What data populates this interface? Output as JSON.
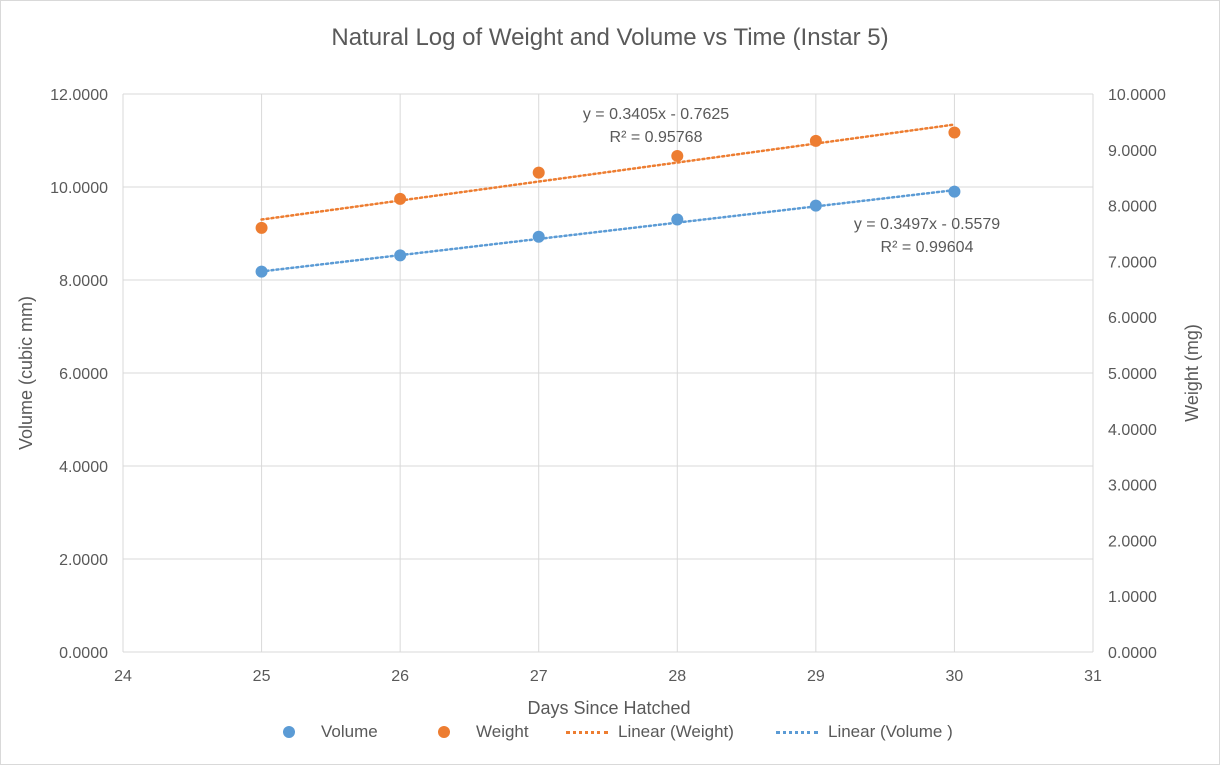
{
  "chart_data": {
    "type": "scatter",
    "title": "Natural Log of Weight and Volume vs Time (Instar 5)",
    "xlabel": "Days Since Hatched",
    "ylabel_left": "Volume (cubic mm)",
    "ylabel_right": "Weight (mg)",
    "xlim": [
      24,
      31
    ],
    "xticks": [
      "24",
      "25",
      "26",
      "27",
      "28",
      "29",
      "30",
      "31"
    ],
    "ylim_left": [
      0,
      12
    ],
    "yticks_left": [
      "0.0000",
      "2.0000",
      "4.0000",
      "6.0000",
      "8.0000",
      "10.0000",
      "12.0000"
    ],
    "ylim_right": [
      0,
      10
    ],
    "yticks_right": [
      "0.0000",
      "1.0000",
      "2.0000",
      "3.0000",
      "4.0000",
      "5.0000",
      "6.0000",
      "7.0000",
      "8.0000",
      "9.0000",
      "10.0000"
    ],
    "grid": true,
    "legend_position": "bottom",
    "series": [
      {
        "name": "Volume",
        "axis": "left",
        "color": "#5b9bd5",
        "x": [
          25,
          26,
          27,
          28,
          29,
          30
        ],
        "y": [
          8.18,
          8.53,
          8.93,
          9.3,
          9.6,
          9.9
        ]
      },
      {
        "name": "Weight",
        "axis": "right",
        "color": "#ed7d31",
        "x": [
          25,
          26,
          27,
          28,
          29,
          30
        ],
        "y": [
          7.6,
          8.12,
          8.59,
          8.89,
          9.16,
          9.31
        ]
      }
    ],
    "trendlines": [
      {
        "name": "Linear  (Weight)",
        "axis": "right",
        "color": "#ed7d31",
        "slope": 0.3405,
        "intercept": -0.7625,
        "x_range": [
          25,
          30
        ],
        "equation": "y = 0.3405x - 0.7625",
        "r2": "R² = 0.95768"
      },
      {
        "name": "Linear  (Volume )",
        "axis": "left",
        "color": "#5b9bd5",
        "slope": 0.3497,
        "intercept": -0.5579,
        "x_range": [
          25,
          30
        ],
        "equation": "y = 0.3497x - 0.5579",
        "r2": "R² = 0.99604"
      }
    ]
  },
  "legend": {
    "volume": "Volume",
    "weight": "Weight",
    "linear_weight": "Linear  (Weight)",
    "linear_volume": "Linear  (Volume )"
  },
  "colors": {
    "volume": "#5b9bd5",
    "weight": "#ed7d31",
    "grid": "#d9d9d9",
    "text": "#595959"
  }
}
